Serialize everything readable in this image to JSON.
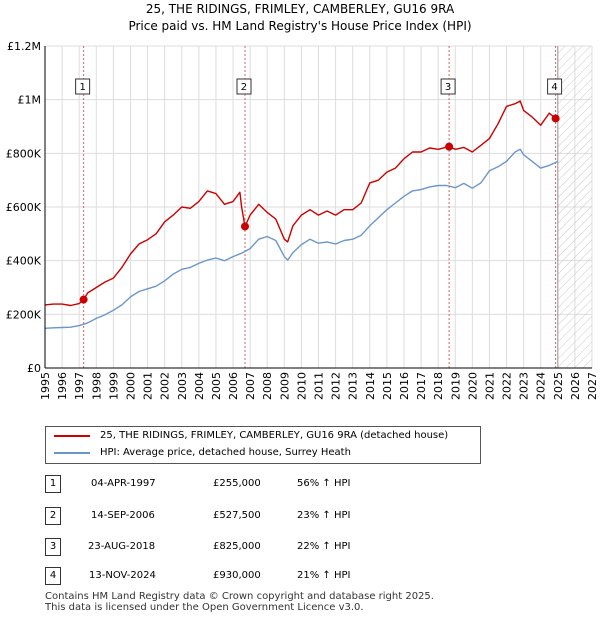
{
  "chart_data": {
    "type": "line",
    "title": "25, THE RIDINGS, FRIMLEY, CAMBERLEY, GU16 9RA",
    "subtitle": "Price paid vs. HM Land Registry's House Price Index (HPI)",
    "xlim": [
      1995,
      2027
    ],
    "ylim": [
      0,
      1200000
    ],
    "x_ticks": [
      1995,
      1996,
      1997,
      1998,
      1999,
      2000,
      2001,
      2002,
      2003,
      2004,
      2005,
      2006,
      2007,
      2008,
      2009,
      2010,
      2011,
      2012,
      2013,
      2014,
      2015,
      2016,
      2017,
      2018,
      2019,
      2020,
      2021,
      2022,
      2023,
      2024,
      2025,
      2026,
      2027
    ],
    "y_ticks": [
      {
        "value": 0,
        "label": "£0"
      },
      {
        "value": 200000,
        "label": "£200K"
      },
      {
        "value": 400000,
        "label": "£400K"
      },
      {
        "value": 600000,
        "label": "£600K"
      },
      {
        "value": 800000,
        "label": "£800K"
      },
      {
        "value": 1000000,
        "label": "£1M"
      },
      {
        "value": 1200000,
        "label": "£1.2M"
      }
    ],
    "forecast_from": 2025.0,
    "series": [
      {
        "name": "25, THE RIDINGS, FRIMLEY, CAMBERLEY, GU16 9RA (detached house)",
        "color": "#cc0000",
        "x": [
          1995.0,
          1995.5,
          1996.0,
          1996.5,
          1997.0,
          1997.26,
          1997.5,
          1998.0,
          1998.5,
          1999.0,
          1999.5,
          2000.0,
          2000.5,
          2001.0,
          2001.5,
          2002.0,
          2002.5,
          2003.0,
          2003.5,
          2004.0,
          2004.5,
          2005.0,
          2005.5,
          2006.0,
          2006.4,
          2006.5,
          2006.7,
          2007.0,
          2007.5,
          2008.0,
          2008.5,
          2009.0,
          2009.2,
          2009.5,
          2010.0,
          2010.5,
          2011.0,
          2011.5,
          2012.0,
          2012.5,
          2013.0,
          2013.5,
          2014.0,
          2014.5,
          2015.0,
          2015.5,
          2016.0,
          2016.5,
          2017.0,
          2017.5,
          2018.0,
          2018.64,
          2019.0,
          2019.5,
          2020.0,
          2020.5,
          2021.0,
          2021.5,
          2022.0,
          2022.5,
          2022.8,
          2023.0,
          2023.5,
          2024.0,
          2024.5,
          2024.87,
          2025.0
        ],
        "values": [
          235000,
          238000,
          238000,
          233000,
          240000,
          255000,
          280000,
          300000,
          320000,
          335000,
          375000,
          425000,
          462000,
          478000,
          500000,
          545000,
          570000,
          600000,
          595000,
          620000,
          660000,
          650000,
          610000,
          620000,
          655000,
          600000,
          527500,
          570000,
          610000,
          580000,
          555000,
          480000,
          470000,
          530000,
          570000,
          590000,
          570000,
          585000,
          570000,
          590000,
          590000,
          615000,
          690000,
          700000,
          730000,
          745000,
          780000,
          805000,
          805000,
          820000,
          815000,
          825000,
          815000,
          822000,
          805000,
          830000,
          855000,
          910000,
          975000,
          985000,
          995000,
          960000,
          935000,
          905000,
          950000,
          930000,
          935000
        ]
      },
      {
        "name": "HPI: Average price, detached house, Surrey Heath",
        "color": "#6b96cc",
        "x": [
          1995.0,
          1995.5,
          1996.0,
          1996.5,
          1997.0,
          1997.5,
          1998.0,
          1998.5,
          1999.0,
          1999.5,
          2000.0,
          2000.5,
          2001.0,
          2001.5,
          2002.0,
          2002.5,
          2003.0,
          2003.5,
          2004.0,
          2004.5,
          2005.0,
          2005.5,
          2006.0,
          2006.5,
          2007.0,
          2007.5,
          2008.0,
          2008.5,
          2009.0,
          2009.2,
          2009.5,
          2010.0,
          2010.5,
          2011.0,
          2011.5,
          2012.0,
          2012.5,
          2013.0,
          2013.5,
          2014.0,
          2014.5,
          2015.0,
          2015.5,
          2016.0,
          2016.5,
          2017.0,
          2017.5,
          2018.0,
          2018.5,
          2019.0,
          2019.5,
          2020.0,
          2020.5,
          2021.0,
          2021.5,
          2022.0,
          2022.5,
          2022.8,
          2023.0,
          2023.5,
          2024.0,
          2024.5,
          2025.0
        ],
        "values": [
          148000,
          150000,
          151000,
          152000,
          158000,
          168000,
          185000,
          198000,
          215000,
          235000,
          265000,
          285000,
          295000,
          305000,
          325000,
          350000,
          368000,
          375000,
          390000,
          402000,
          410000,
          400000,
          415000,
          428000,
          445000,
          480000,
          490000,
          475000,
          415000,
          402000,
          430000,
          460000,
          480000,
          465000,
          470000,
          462000,
          475000,
          480000,
          495000,
          530000,
          560000,
          590000,
          615000,
          640000,
          660000,
          665000,
          675000,
          680000,
          680000,
          672000,
          688000,
          670000,
          690000,
          735000,
          750000,
          770000,
          805000,
          815000,
          795000,
          770000,
          745000,
          755000,
          770000
        ]
      }
    ],
    "markers": [
      {
        "label": "1",
        "x": 1997.26,
        "y": 255000
      },
      {
        "label": "2",
        "x": 2006.7,
        "y": 527500
      },
      {
        "label": "3",
        "x": 2018.64,
        "y": 825000
      },
      {
        "label": "4",
        "x": 2024.87,
        "y": 930000
      }
    ]
  },
  "legend": {
    "property_label": "25, THE RIDINGS, FRIMLEY, CAMBERLEY, GU16 9RA (detached house)",
    "hpi_label": "HPI: Average price, detached house, Surrey Heath"
  },
  "sales": [
    {
      "num": "1",
      "date": "04-APR-1997",
      "price": "£255,000",
      "hpi": "56% ↑ HPI"
    },
    {
      "num": "2",
      "date": "14-SEP-2006",
      "price": "£527,500",
      "hpi": "23% ↑ HPI"
    },
    {
      "num": "3",
      "date": "23-AUG-2018",
      "price": "£825,000",
      "hpi": "22% ↑ HPI"
    },
    {
      "num": "4",
      "date": "13-NOV-2024",
      "price": "£930,000",
      "hpi": "21% ↑ HPI"
    }
  ],
  "footer": {
    "line1": "Contains HM Land Registry data © Crown copyright and database right 2025.",
    "line2": "This data is licensed under the Open Government Licence v3.0."
  }
}
